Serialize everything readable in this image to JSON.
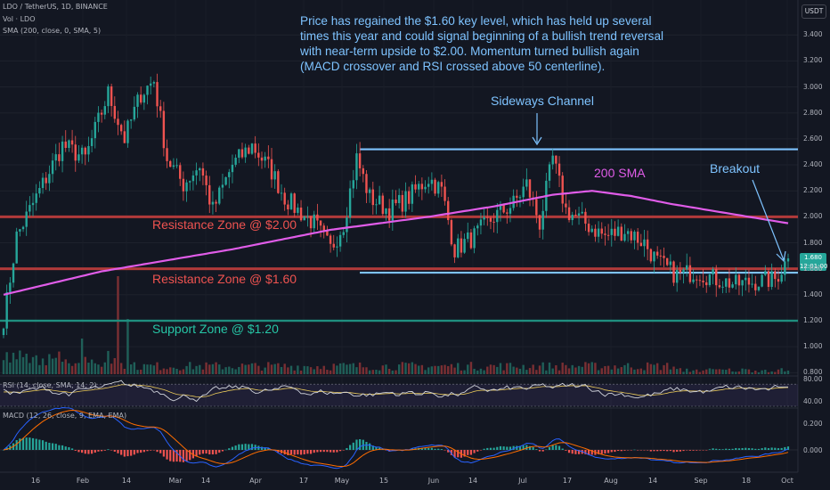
{
  "header": {
    "symbol_line": "LDO / TetherUS, 1D, BINANCE",
    "vol_line": "Vol · LDO",
    "sma_line": "SMA (200, close, 0, SMA, 5)",
    "rsi_line": "RSI (14, close, SMA, 14, 2)",
    "macd_line": "MACD (12, 26, close, 9, EMA, EMA)"
  },
  "currency_button": "USDT",
  "last_price": {
    "value": "1.680",
    "countdown": "12:01:00"
  },
  "annotations": {
    "main_text": [
      "Price has regained the $1.60 key level, which has held up several",
      "times this year and could signal beginning of a bullish trend reversal",
      "with near-term upside to $2.00. Momentum turned bullish again",
      "(MACD crossover and RSI crossed above 50 centerline)."
    ],
    "channel_label": "Sideways Channel",
    "sma_label": "200 SMA",
    "breakout_label": "Breakout",
    "res2_label": "Resistance Zone @ $2.00",
    "res16_label": "Resistance Zone @ $1.60",
    "sup_label": "Support Zone @ $1.20"
  },
  "colors": {
    "background": "#131722",
    "up": "#26a69a",
    "down": "#ef5350",
    "sma": "#e05ce8",
    "channel": "#7ec3ff",
    "resistance": "#b23a3a",
    "support": "#1f8f7f"
  },
  "chart_data": {
    "type": "candlestick",
    "instrument": "LDO / TetherUS",
    "timeframe": "1D",
    "exchange": "BINANCE",
    "y_ticks": [
      "3.400",
      "3.200",
      "3.000",
      "2.800",
      "2.600",
      "2.400",
      "2.200",
      "2.000",
      "1.800",
      "1.600",
      "1.400",
      "1.200",
      "1.000",
      "0.800"
    ],
    "ylim": [
      0.8,
      3.5
    ],
    "x_ticks": [
      "16",
      "Feb",
      "14",
      "Mar",
      "14",
      "Apr",
      "17",
      "May",
      "15",
      "Jun",
      "14",
      "Jul",
      "17",
      "Aug",
      "14",
      "Sep",
      "18",
      "Oct"
    ],
    "price_keypoints": [
      [
        0,
        1.2
      ],
      [
        4,
        1.85
      ],
      [
        10,
        2.15
      ],
      [
        18,
        2.55
      ],
      [
        25,
        2.45
      ],
      [
        32,
        2.95
      ],
      [
        37,
        2.6
      ],
      [
        42,
        2.95
      ],
      [
        46,
        3.05
      ],
      [
        50,
        2.45
      ],
      [
        55,
        2.25
      ],
      [
        60,
        2.4
      ],
      [
        64,
        2.05
      ],
      [
        70,
        2.4
      ],
      [
        76,
        2.55
      ],
      [
        82,
        2.35
      ],
      [
        86,
        2.15
      ],
      [
        90,
        2.05
      ],
      [
        95,
        1.95
      ],
      [
        100,
        1.75
      ],
      [
        104,
        1.95
      ],
      [
        108,
        2.45
      ],
      [
        112,
        2.15
      ],
      [
        118,
        2.05
      ],
      [
        124,
        2.15
      ],
      [
        130,
        2.3
      ],
      [
        134,
        2.2
      ],
      [
        138,
        1.75
      ],
      [
        144,
        1.85
      ],
      [
        150,
        2.0
      ],
      [
        156,
        2.1
      ],
      [
        160,
        2.25
      ],
      [
        164,
        1.95
      ],
      [
        168,
        2.45
      ],
      [
        172,
        2.05
      ],
      [
        178,
        1.95
      ],
      [
        184,
        1.85
      ],
      [
        190,
        1.9
      ],
      [
        196,
        1.8
      ],
      [
        200,
        1.65
      ],
      [
        206,
        1.55
      ],
      [
        212,
        1.58
      ],
      [
        218,
        1.52
      ],
      [
        224,
        1.48
      ],
      [
        230,
        1.5
      ],
      [
        236,
        1.52
      ],
      [
        240,
        1.68
      ]
    ],
    "sma200": [
      [
        0,
        1.4
      ],
      [
        30,
        1.58
      ],
      [
        70,
        1.75
      ],
      [
        100,
        1.9
      ],
      [
        130,
        2.0
      ],
      [
        150,
        2.08
      ],
      [
        168,
        2.17
      ],
      [
        180,
        2.2
      ],
      [
        192,
        2.16
      ],
      [
        204,
        2.1
      ],
      [
        216,
        2.05
      ],
      [
        228,
        2.0
      ],
      [
        240,
        1.95
      ]
    ],
    "levels": {
      "resistance_2_00": 2.0,
      "resistance_1_60": 1.6,
      "support_1_20": 1.2,
      "channel_top": 2.52,
      "channel_bottom": 1.57
    },
    "rsi": {
      "ticks": [
        "80.00",
        "40.00"
      ],
      "range": [
        30,
        80
      ],
      "last": 65
    },
    "macd": {
      "ticks": [
        "0.200",
        "0.000"
      ],
      "range": [
        -0.25,
        0.25
      ]
    },
    "last_price": 1.68
  }
}
